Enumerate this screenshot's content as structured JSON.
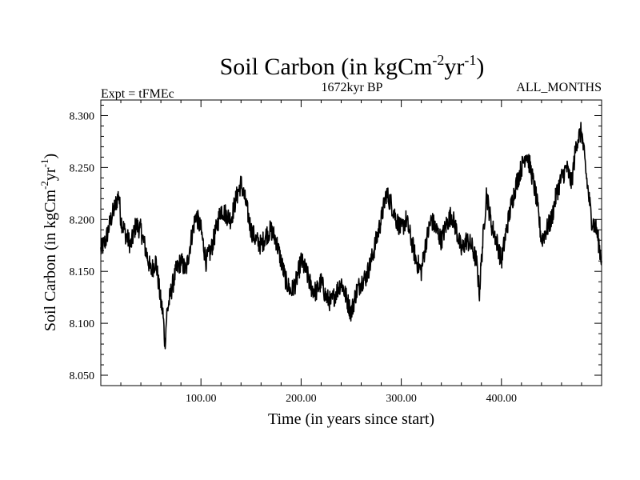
{
  "chart_data": {
    "type": "line",
    "title": {
      "main": "Soil Carbon (in kgCm",
      "sup1": "-2",
      "mid": "yr",
      "sup2": "-1",
      "end": ")"
    },
    "subtitle_left": "Expt = tFMEc",
    "subtitle_center": "1672kyr BP",
    "subtitle_right": "ALL_MONTHS",
    "xlabel": "Time (in years since start)",
    "ylabel": {
      "main": "Soil Carbon (in kgCm",
      "sup1": "-2",
      "mid": "yr",
      "sup2": "-1",
      "end": ")"
    },
    "xlim": [
      0,
      500
    ],
    "ylim": [
      8.04,
      8.315
    ],
    "xticks": [
      100,
      200,
      300,
      400
    ],
    "xtick_labels": [
      "100.00",
      "200.00",
      "300.00",
      "400.00"
    ],
    "yticks": [
      8.05,
      8.1,
      8.15,
      8.2,
      8.25,
      8.3
    ],
    "ytick_labels": [
      "8.050",
      "8.100",
      "8.150",
      "8.200",
      "8.250",
      "8.300"
    ],
    "line_color": "#000000",
    "series": [
      {
        "x": [
          0,
          5,
          10,
          15,
          18,
          20,
          25,
          30,
          35,
          40,
          45,
          50,
          55,
          60,
          62,
          64,
          66,
          70,
          75,
          80,
          85,
          90,
          95,
          100,
          105,
          110,
          115,
          120,
          125,
          130,
          135,
          140,
          145,
          150,
          155,
          160,
          165,
          170,
          175,
          180,
          185,
          190,
          195,
          200,
          205,
          210,
          215,
          220,
          225,
          230,
          235,
          240,
          245,
          250,
          255,
          260,
          265,
          270,
          275,
          280,
          285,
          290,
          295,
          300,
          305,
          310,
          315,
          320,
          325,
          330,
          335,
          340,
          345,
          350,
          355,
          360,
          365,
          370,
          375,
          378,
          380,
          385,
          390,
          395,
          400,
          405,
          410,
          415,
          420,
          425,
          430,
          435,
          440,
          445,
          450,
          455,
          460,
          465,
          470,
          475,
          480,
          485,
          490,
          495,
          500
        ],
        "y": [
          8.17,
          8.18,
          8.2,
          8.215,
          8.225,
          8.2,
          8.185,
          8.175,
          8.195,
          8.19,
          8.17,
          8.15,
          8.16,
          8.12,
          8.11,
          8.08,
          8.11,
          8.13,
          8.15,
          8.16,
          8.15,
          8.18,
          8.205,
          8.19,
          8.16,
          8.17,
          8.19,
          8.21,
          8.205,
          8.2,
          8.22,
          8.235,
          8.215,
          8.19,
          8.18,
          8.175,
          8.185,
          8.19,
          8.18,
          8.16,
          8.14,
          8.13,
          8.14,
          8.16,
          8.15,
          8.135,
          8.13,
          8.14,
          8.125,
          8.12,
          8.13,
          8.14,
          8.125,
          8.11,
          8.13,
          8.14,
          8.145,
          8.16,
          8.18,
          8.2,
          8.225,
          8.215,
          8.2,
          8.19,
          8.2,
          8.18,
          8.16,
          8.15,
          8.18,
          8.2,
          8.19,
          8.18,
          8.195,
          8.205,
          8.19,
          8.17,
          8.18,
          8.175,
          8.16,
          8.13,
          8.16,
          8.225,
          8.195,
          8.18,
          8.16,
          8.19,
          8.215,
          8.235,
          8.25,
          8.265,
          8.245,
          8.22,
          8.18,
          8.19,
          8.2,
          8.225,
          8.24,
          8.25,
          8.235,
          8.275,
          8.285,
          8.24,
          8.2,
          8.19,
          8.16
        ]
      }
    ]
  }
}
